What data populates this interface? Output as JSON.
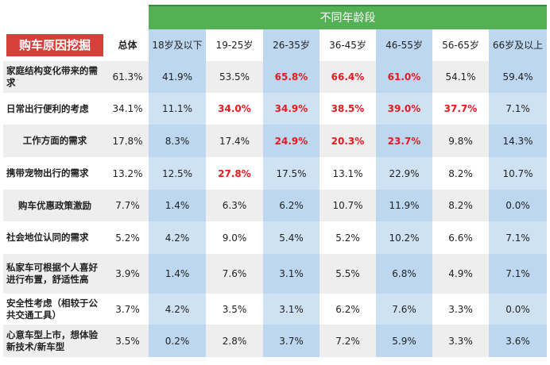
{
  "title": "购车原因挖掘",
  "age_group_header": "不同年龄段",
  "total_header": "总体",
  "columns": [
    "18岁及以下",
    "19-25岁",
    "26-35岁",
    "36-45岁",
    "46-55岁",
    "56-65岁",
    "66岁及以上"
  ],
  "rows": [
    {
      "label": "家庭结构变化带来的需求",
      "total": "61.3%",
      "values": [
        "41.9%",
        "53.5%",
        "65.8%",
        "66.4%",
        "61.0%",
        "54.1%",
        "59.4%"
      ],
      "highlight": [
        false,
        false,
        true,
        true,
        true,
        false,
        false
      ]
    },
    {
      "label": "日常出行便利的考虑",
      "total": "34.1%",
      "values": [
        "11.1%",
        "34.0%",
        "34.9%",
        "38.5%",
        "39.0%",
        "37.7%",
        "7.1%"
      ],
      "highlight": [
        false,
        true,
        true,
        true,
        true,
        true,
        false
      ]
    },
    {
      "label": "工作方面的需求",
      "total": "17.8%",
      "values": [
        "8.3%",
        "17.4%",
        "24.9%",
        "20.3%",
        "23.7%",
        "9.8%",
        "14.3%"
      ],
      "highlight": [
        false,
        false,
        true,
        true,
        true,
        false,
        false
      ]
    },
    {
      "label": "携带宠物出行的需求",
      "total": "13.2%",
      "values": [
        "12.5%",
        "27.8%",
        "17.5%",
        "13.1%",
        "22.9%",
        "8.2%",
        "10.7%"
      ],
      "highlight": [
        false,
        true,
        false,
        false,
        false,
        false,
        false
      ]
    },
    {
      "label": "购车优惠政策激励",
      "total": "7.7%",
      "values": [
        "1.4%",
        "6.3%",
        "6.2%",
        "10.7%",
        "11.9%",
        "8.2%",
        "0.0%"
      ],
      "highlight": [
        false,
        false,
        false,
        false,
        false,
        false,
        false
      ]
    },
    {
      "label": "社会地位认同的需求",
      "total": "5.2%",
      "values": [
        "4.2%",
        "9.0%",
        "5.4%",
        "5.2%",
        "10.2%",
        "6.6%",
        "7.1%"
      ],
      "highlight": [
        false,
        false,
        false,
        false,
        false,
        false,
        false
      ]
    },
    {
      "label": "私家车可根据个人喜好进行布置，舒适性高",
      "total": "3.9%",
      "values": [
        "1.4%",
        "7.6%",
        "3.1%",
        "5.5%",
        "6.8%",
        "4.9%",
        "7.1%"
      ],
      "highlight": [
        false,
        false,
        false,
        false,
        false,
        false,
        false
      ]
    },
    {
      "label": "安全性考虑（相较于公共交通工具）",
      "total": "3.7%",
      "values": [
        "4.2%",
        "3.5%",
        "3.1%",
        "6.2%",
        "7.6%",
        "3.3%",
        "0.0%"
      ],
      "highlight": [
        false,
        false,
        false,
        false,
        false,
        false,
        false
      ]
    },
    {
      "label": "心意车型上市，想体验新技术/新车型",
      "total": "3.5%",
      "values": [
        "0.2%",
        "2.8%",
        "3.7%",
        "7.2%",
        "5.9%",
        "3.3%",
        "3.6%"
      ],
      "highlight": [
        false,
        false,
        false,
        false,
        false,
        false,
        false
      ]
    }
  ],
  "colors": {
    "header_green": "#53b154",
    "title_red": "#d73f3a",
    "highlight_red": "#e8181e",
    "blue_column": "#bcd7ef",
    "stripe_gray": "#eeeeee"
  }
}
